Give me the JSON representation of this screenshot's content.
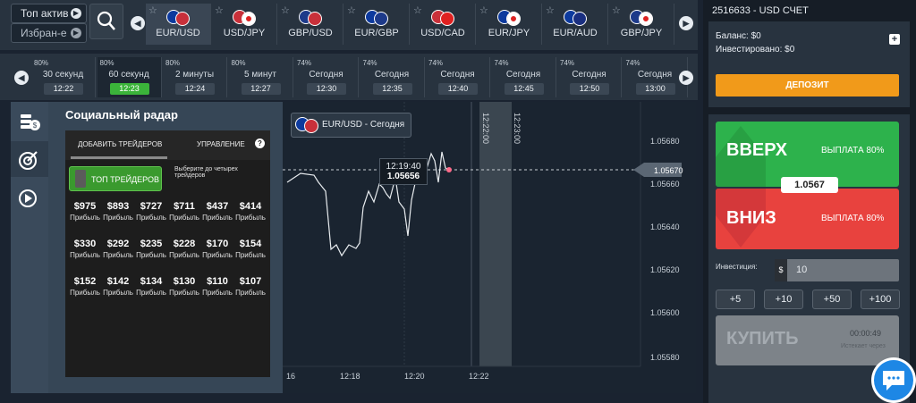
{
  "topbar": {
    "top_active": "Топ актив",
    "favorites": "Избран-е"
  },
  "assets": [
    {
      "name": "EUR/USD",
      "selected": true
    },
    {
      "name": "USD/JPY"
    },
    {
      "name": "GBP/USD"
    },
    {
      "name": "EUR/GBP"
    },
    {
      "name": "USD/CAD"
    },
    {
      "name": "EUR/JPY"
    },
    {
      "name": "EUR/AUD"
    },
    {
      "name": "GBP/JPY"
    }
  ],
  "expiries": [
    {
      "pct": "80%",
      "label": "30 секунд",
      "time": "12:22"
    },
    {
      "pct": "80%",
      "label": "60 секунд",
      "time": "12:23",
      "selected": true
    },
    {
      "pct": "80%",
      "label": "2 минуты",
      "time": "12:24"
    },
    {
      "pct": "80%",
      "label": "5 минут",
      "time": "12:27"
    },
    {
      "pct": "74%",
      "label": "Сегодня",
      "time": "12:30"
    },
    {
      "pct": "74%",
      "label": "Сегодня",
      "time": "12:35"
    },
    {
      "pct": "74%",
      "label": "Сегодня",
      "time": "12:40"
    },
    {
      "pct": "74%",
      "label": "Сегодня",
      "time": "12:45"
    },
    {
      "pct": "74%",
      "label": "Сегодня",
      "time": "12:50"
    },
    {
      "pct": "74%",
      "label": "Сегодня",
      "time": "13:00"
    }
  ],
  "radar": {
    "title": "Социальный радар",
    "tab_add": "ДОБАВИТЬ ТРЕЙДЕРОВ",
    "tab_manage": "УПРАВЛЕНИЕ",
    "help": "?",
    "top_button": "ТОП ТРЕЙДЕРОВ",
    "hint": "Выберите до четырех трейдеров",
    "profit_label": "Прибыль",
    "traders": [
      "$975",
      "$893",
      "$727",
      "$711",
      "$437",
      "$414",
      "$330",
      "$292",
      "$235",
      "$228",
      "$170",
      "$154",
      "$152",
      "$142",
      "$134",
      "$130",
      "$110",
      "$107"
    ]
  },
  "chart": {
    "tooltip": "EUR/USD - Сегодня",
    "cursor_time": "12:19:40",
    "cursor_price": "1.05656",
    "vertical_labels": [
      "12:22:00",
      "12:23:00"
    ],
    "y_ticks": [
      "1.05680",
      "1.05660",
      "1.05640",
      "1.05620",
      "1.05600",
      "1.05580"
    ],
    "current_price": "1.05670",
    "x_ticks": [
      "16",
      "12:18",
      "12:20",
      "12:22"
    ]
  },
  "account": {
    "title": "2516633 - USD СЧЕТ",
    "balance": "Баланс: $0",
    "invested": "Инвестировано: $0",
    "plus": "+",
    "deposit": "ДЕПОЗИТ"
  },
  "trade": {
    "up": "ВВЕРХ",
    "up_payout": "ВЫПЛАТА 80%",
    "price": "1.0567",
    "down": "ВНИЗ",
    "down_payout": "ВЫПЛАТА 80%",
    "invest_label": "Инвестиция:",
    "currency": "$",
    "amount": "10",
    "quick": [
      "+5",
      "+10",
      "+50",
      "+100"
    ],
    "buy": "КУПИТЬ",
    "timer": "00:00:49",
    "expires": "Истекает через"
  },
  "colors": {
    "up": "#2db24c",
    "down": "#e8423e",
    "deposit": "#f19a1a",
    "selected_time": "#3bb43a",
    "chat": "#1d87e5"
  }
}
